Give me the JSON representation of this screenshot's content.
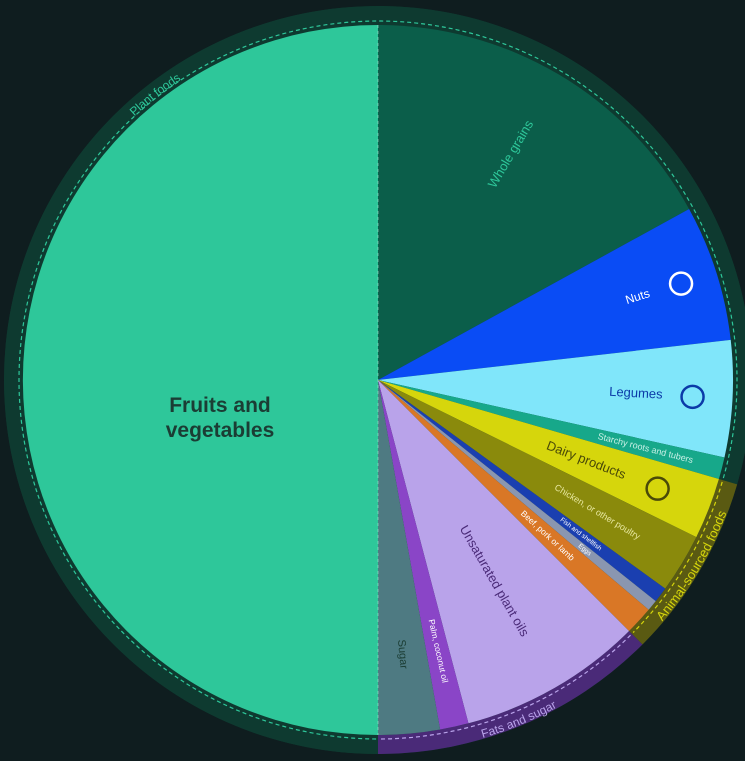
{
  "chart_data": {
    "type": "pie",
    "categories": [
      "Whole grains",
      "Nuts",
      "Legumes",
      "Starchy roots and tubers",
      "Dairy products",
      "Chicken, or other poultry",
      "Fish and shellfish",
      "Eggs",
      "Beef, pork or lamb",
      "Unsaturated plant oils",
      "Palm, coconut oil",
      "Sugar",
      "Fruits and vegetables"
    ],
    "values": [
      17,
      6.2,
      5.3,
      1,
      2.8,
      2.7,
      0.7,
      0.5,
      1.3,
      8.4,
      1.3,
      2.8,
      50
    ],
    "colors": [
      "#0b5e4a",
      "#0a4cf5",
      "#80e6fa",
      "#17a88a",
      "#d6d60c",
      "#8a8a0c",
      "#1a3fb0",
      "#8a96b0",
      "#d97726",
      "#b9a3ea",
      "#8a45c7",
      "#4e7a82",
      "#2ec79a"
    ],
    "groups": [
      {
        "name": "Plant foods",
        "color": "#2ec79a"
      },
      {
        "name": "Animal-sourced foods",
        "color": "#d6d60c"
      },
      {
        "name": "Fats and sugar",
        "color": "#b9a3ea"
      }
    ]
  }
}
